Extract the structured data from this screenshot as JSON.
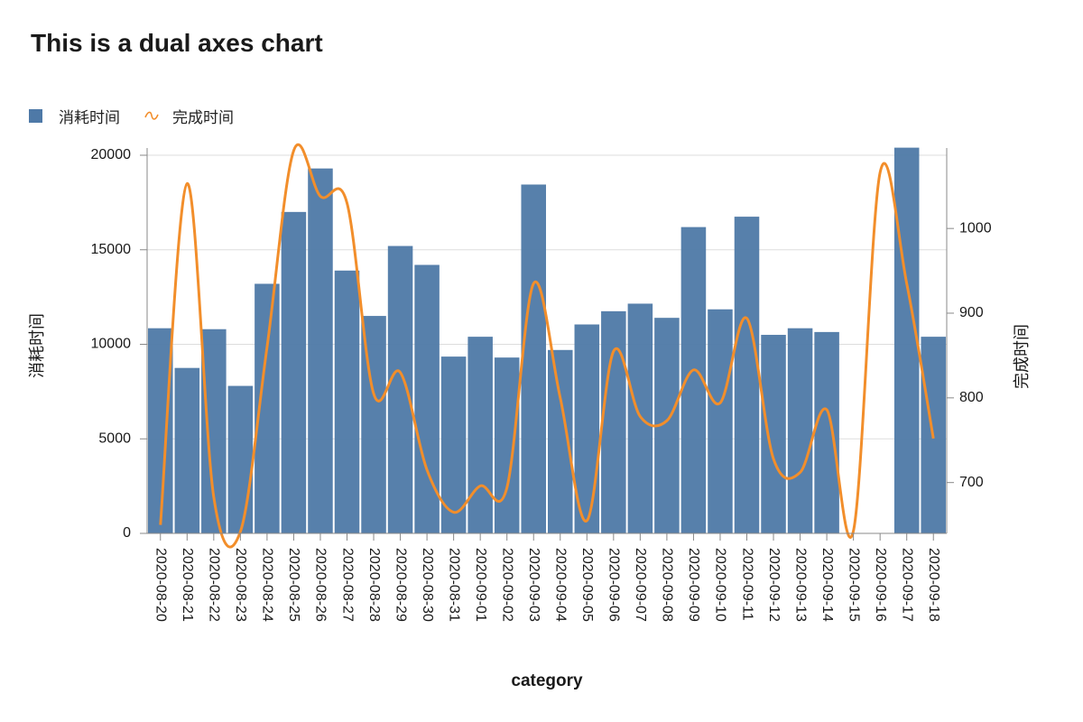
{
  "title": "This is a dual axes chart",
  "legend": [
    {
      "label": "消耗时间",
      "kind": "bar"
    },
    {
      "label": "完成时间",
      "kind": "line"
    }
  ],
  "colors": {
    "bar": "#4e79a7",
    "line": "#f28e2b",
    "grid": "#dddddd",
    "axis": "#888888"
  },
  "chart_data": {
    "type": "bar",
    "title": "This is a dual axes chart",
    "xlabel": "category",
    "ylabel_left": "消耗时间",
    "ylabel_right": "完成时间",
    "categories": [
      "2020-08-20",
      "2020-08-21",
      "2020-08-22",
      "2020-08-23",
      "2020-08-24",
      "2020-08-25",
      "2020-08-26",
      "2020-08-27",
      "2020-08-28",
      "2020-08-29",
      "2020-08-30",
      "2020-08-31",
      "2020-09-01",
      "2020-09-02",
      "2020-09-03",
      "2020-09-04",
      "2020-09-05",
      "2020-09-06",
      "2020-09-07",
      "2020-09-08",
      "2020-09-09",
      "2020-09-10",
      "2020-09-11",
      "2020-09-12",
      "2020-09-13",
      "2020-09-14",
      "2020-09-15",
      "2020-09-16",
      "2020-09-17",
      "2020-09-18"
    ],
    "left_axis": {
      "ylim": [
        0,
        20000
      ],
      "ticks": [
        0,
        5000,
        10000,
        15000,
        20000
      ]
    },
    "right_axis": {
      "ylim": [
        640,
        1095
      ],
      "ticks": [
        700,
        800,
        900,
        1000
      ]
    },
    "series": [
      {
        "name": "消耗时间",
        "type": "bar",
        "axis": "left",
        "values": [
          10850,
          8750,
          10800,
          7800,
          13200,
          17000,
          19300,
          13900,
          11500,
          15200,
          14200,
          9350,
          10400,
          9300,
          18450,
          9700,
          11050,
          11750,
          12150,
          11400,
          16200,
          11850,
          16750,
          10500,
          10850,
          10650,
          0,
          0,
          20400,
          10400
        ]
      },
      {
        "name": "完成时间",
        "type": "line",
        "axis": "right",
        "values": [
          650,
          1053,
          683,
          642,
          860,
          1092,
          1038,
          1030,
          805,
          830,
          715,
          665,
          696,
          694,
          935,
          800,
          655,
          855,
          778,
          773,
          833,
          794,
          894,
          728,
          712,
          786,
          643,
          1066,
          935,
          752
        ]
      }
    ],
    "grid": true,
    "legend_position": "top-left"
  }
}
